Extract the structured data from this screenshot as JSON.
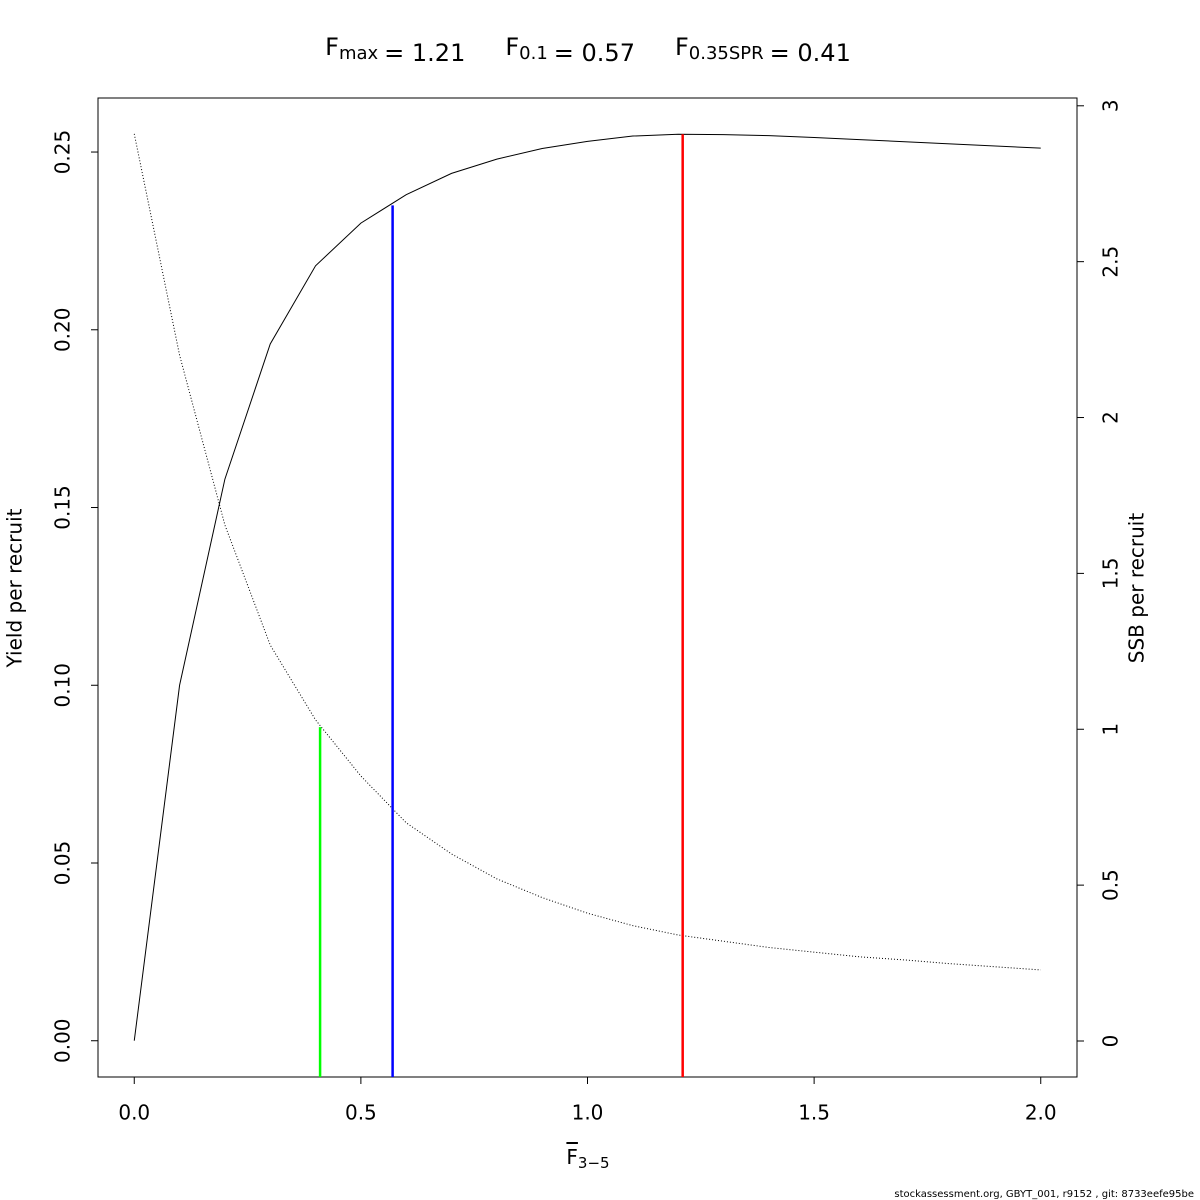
{
  "chart_data": {
    "type": "line",
    "title": [
      {
        "symbol": "F",
        "subscript": "max",
        "value": 1.21,
        "value_label": "= 1.21",
        "color": "#ff0000",
        "top": 0.255,
        "axis": "y"
      },
      {
        "symbol": "F",
        "subscript": "0.1",
        "value": 0.57,
        "value_label": "= 0.57",
        "color": "#0000ff",
        "top": 0.235,
        "axis": "y"
      },
      {
        "symbol": "F",
        "subscript": "0.35SPR",
        "value": 0.41,
        "value_label": "= 0.41",
        "color": "#00ff00",
        "top": 1.007,
        "axis": "y2"
      }
    ],
    "xlabel": {
      "text": "F",
      "subscript": "3−5"
    },
    "ylabel": "Yield per recruit",
    "y2label": "SSB per recruit",
    "x": [
      0,
      0.1,
      0.2,
      0.3,
      0.4,
      0.5,
      0.6,
      0.7,
      0.8,
      0.9,
      1.0,
      1.1,
      1.2,
      1.3,
      1.4,
      1.5,
      1.6,
      1.7,
      1.8,
      1.9,
      2.0
    ],
    "series": [
      {
        "name": "Yield per recruit",
        "color": "#000000",
        "style": "solid",
        "values": [
          0,
          0.1,
          0.158,
          0.196,
          0.218,
          0.23,
          0.238,
          0.244,
          0.248,
          0.251,
          0.253,
          0.2545,
          0.255,
          0.2549,
          0.2546,
          0.2541,
          0.2535,
          0.2529,
          0.2523,
          0.2517,
          0.2511
        ]
      },
      {
        "name": "SSB per recruit",
        "color": "#000000",
        "style": "dotted",
        "axis": "y2",
        "values": [
          2.91,
          2.2,
          1.655,
          1.27,
          1.03,
          0.85,
          0.7,
          0.6,
          0.52,
          0.46,
          0.41,
          0.37,
          0.34,
          0.32,
          0.3,
          0.285,
          0.27,
          0.26,
          0.248,
          0.238,
          0.228
        ]
      }
    ],
    "xlim": [
      -0.08,
      2.08
    ],
    "ylim": [
      -0.0102,
      0.2652
    ],
    "y2lim": [
      -0.1155,
      3.025
    ],
    "xticks": [
      {
        "value": 0,
        "label": "0.0"
      },
      {
        "value": 0.5,
        "label": "0.5"
      },
      {
        "value": 1,
        "label": "1.0"
      },
      {
        "value": 1.5,
        "label": "1.5"
      },
      {
        "value": 2,
        "label": "2.0"
      }
    ],
    "yticks": [
      {
        "value": 0,
        "label": "0.00"
      },
      {
        "value": 0.05,
        "label": "0.05"
      },
      {
        "value": 0.1,
        "label": "0.10"
      },
      {
        "value": 0.15,
        "label": "0.15"
      },
      {
        "value": 0.2,
        "label": "0.20"
      },
      {
        "value": 0.25,
        "label": "0.25"
      }
    ],
    "y2ticks": [
      0,
      0.5,
      1,
      1.5,
      2,
      2.5,
      3
    ],
    "footer": "stockassessment.org, GBYT_001, r9152 , git: 8733eefe95be"
  }
}
